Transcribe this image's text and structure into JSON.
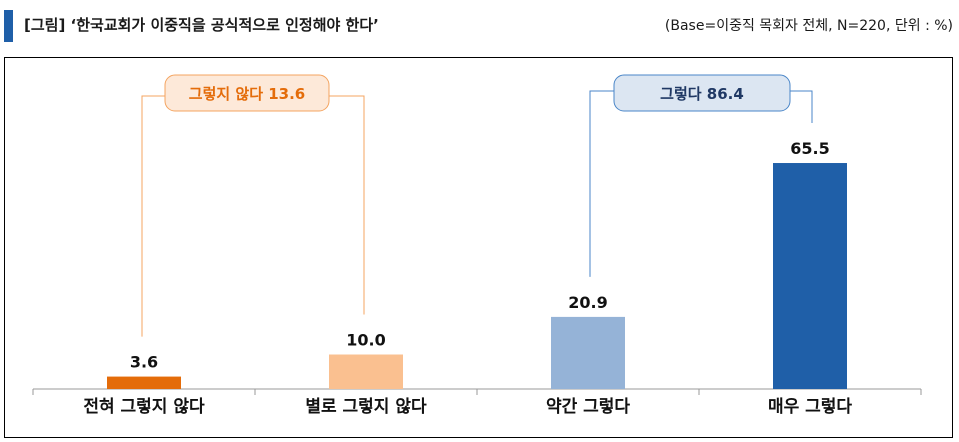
{
  "header": {
    "title": "[그림] ‘한국교회가 이중직을 공식적으로 인정해야 한다’",
    "base_note": "(Base=이중직 목회자 전체, N=220, 단위 : %)"
  },
  "chart_data": {
    "type": "bar",
    "categories": [
      "전혀 그렇지 않다",
      "별로 그렇지 않다",
      "약간 그렇다",
      "매우 그렇다"
    ],
    "values": [
      3.6,
      10.0,
      20.9,
      65.5
    ],
    "value_labels": [
      "3.6",
      "10.0",
      "20.9",
      "65.5"
    ],
    "colors": [
      "#e46c0a",
      "#fac090",
      "#95b3d7",
      "#1f5fa8"
    ],
    "ylim": [
      0,
      70
    ],
    "grid": false,
    "title": "",
    "xlabel": "",
    "ylabel": "",
    "groups": [
      {
        "label": "그렇지 않다 13.6",
        "covers": [
          0,
          1
        ],
        "color": "#e46c0a",
        "box_fill": "#fde9d9",
        "line_color": "#f4a460"
      },
      {
        "label": "그렇다 86.4",
        "covers": [
          2,
          3
        ],
        "color": "#1f3864",
        "box_fill": "#dce6f2",
        "line_color": "#4a86c8"
      }
    ]
  }
}
